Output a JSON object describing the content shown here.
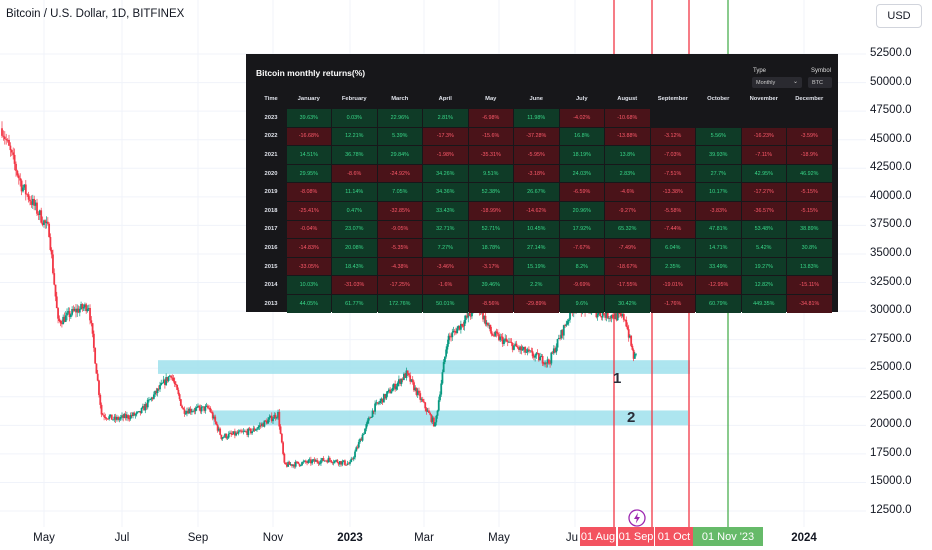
{
  "header": {
    "title": "Bitcoin / U.S. Dollar, 1D, BITFINEX",
    "currency": "USD"
  },
  "colors": {
    "up": "#089981",
    "down": "#f23645",
    "zone": "#9fe1ec",
    "red_line": "#f23645",
    "green_line": "#4caf50"
  },
  "y_axis": {
    "ticks": [
      "52500.0",
      "50000.0",
      "47500.0",
      "45000.0",
      "42500.0",
      "40000.0",
      "37500.0",
      "35000.0",
      "32500.0",
      "30000.0",
      "27500.0",
      "25000.0",
      "22500.0",
      "20000.0",
      "17500.0",
      "15000.0",
      "12500.0"
    ]
  },
  "x_axis": {
    "ticks": [
      "May",
      "Jul",
      "Sep",
      "Nov",
      "2023",
      "Mar",
      "May",
      "Ju",
      "2024"
    ]
  },
  "flags": [
    {
      "label": "01 Aug",
      "color": "#f23645"
    },
    {
      "label": "01 Sep",
      "color": "#f23645"
    },
    {
      "label": "01 Oct",
      "color": "#f23645"
    },
    {
      "label": "01 Nov '23",
      "color": "#4caf50"
    }
  ],
  "zones": [
    {
      "label": "1",
      "low": 24500,
      "high": 25700
    },
    {
      "label": "2",
      "low": 20000,
      "high": 21300
    }
  ],
  "vertical_lines": [
    "01 Aug",
    "01 Sep",
    "01 Oct",
    "01 Nov '23"
  ],
  "chart_data": {
    "type": "candlestick",
    "symbol": "BTC/USD",
    "interval": "1D",
    "x_range": [
      "2022-04",
      "2024-01"
    ],
    "ylim": [
      11000,
      56000
    ],
    "trend_points": [
      {
        "x": "2022-04-01",
        "y": 46000
      },
      {
        "x": "2022-04-15",
        "y": 41000
      },
      {
        "x": "2022-05-05",
        "y": 37000
      },
      {
        "x": "2022-05-12",
        "y": 29000
      },
      {
        "x": "2022-05-25",
        "y": 30000
      },
      {
        "x": "2022-06-05",
        "y": 30500
      },
      {
        "x": "2022-06-15",
        "y": 21000
      },
      {
        "x": "2022-06-25",
        "y": 20500
      },
      {
        "x": "2022-07-15",
        "y": 21000
      },
      {
        "x": "2022-08-10",
        "y": 24500
      },
      {
        "x": "2022-08-20",
        "y": 21300
      },
      {
        "x": "2022-09-10",
        "y": 21500
      },
      {
        "x": "2022-09-20",
        "y": 19000
      },
      {
        "x": "2022-10-15",
        "y": 19500
      },
      {
        "x": "2022-11-05",
        "y": 21000
      },
      {
        "x": "2022-11-10",
        "y": 16500
      },
      {
        "x": "2022-12-15",
        "y": 17000
      },
      {
        "x": "2023-01-01",
        "y": 16600
      },
      {
        "x": "2023-01-20",
        "y": 21500
      },
      {
        "x": "2023-02-15",
        "y": 24500
      },
      {
        "x": "2023-03-10",
        "y": 20000
      },
      {
        "x": "2023-03-20",
        "y": 27500
      },
      {
        "x": "2023-04-14",
        "y": 30500
      },
      {
        "x": "2023-04-25",
        "y": 28000
      },
      {
        "x": "2023-05-15",
        "y": 26800
      },
      {
        "x": "2023-06-10",
        "y": 25500
      },
      {
        "x": "2023-06-30",
        "y": 30500
      },
      {
        "x": "2023-07-20",
        "y": 29800
      },
      {
        "x": "2023-08-10",
        "y": 29400
      },
      {
        "x": "2023-08-17",
        "y": 26000
      },
      {
        "x": "2023-08-20",
        "y": 26100
      }
    ]
  },
  "returns_table": {
    "title": "Bitcoin monthly returns(%)",
    "type_label": "Type",
    "type_value": "Monthly",
    "symbol_label": "Symbol",
    "symbol_value": "BTC",
    "time_header": "Time",
    "months": [
      "January",
      "February",
      "March",
      "April",
      "May",
      "June",
      "July",
      "August",
      "September",
      "October",
      "November",
      "December"
    ],
    "rows": [
      {
        "year": "2023",
        "values": [
          "39.63%",
          "0.03%",
          "22.96%",
          "2.81%",
          "-6.98%",
          "11.98%",
          "-4.02%",
          "-10.68%",
          "",
          "",
          "",
          ""
        ]
      },
      {
        "year": "2022",
        "values": [
          "-16.68%",
          "12.21%",
          "5.39%",
          "-17.3%",
          "-15.6%",
          "-37.28%",
          "16.8%",
          "-13.88%",
          "-3.12%",
          "5.56%",
          "-16.23%",
          "-3.59%"
        ]
      },
      {
        "year": "2021",
        "values": [
          "14.51%",
          "36.78%",
          "29.84%",
          "-1.98%",
          "-35.31%",
          "-5.95%",
          "18.19%",
          "13.8%",
          "-7.03%",
          "39.93%",
          "-7.11%",
          "-18.9%"
        ]
      },
      {
        "year": "2020",
        "values": [
          "29.95%",
          "-8.6%",
          "-24.92%",
          "34.26%",
          "9.51%",
          "-3.18%",
          "24.03%",
          "2.83%",
          "-7.51%",
          "27.7%",
          "42.95%",
          "46.92%"
        ]
      },
      {
        "year": "2019",
        "values": [
          "-8.08%",
          "11.14%",
          "7.05%",
          "34.36%",
          "52.38%",
          "26.67%",
          "-6.59%",
          "-4.6%",
          "-13.38%",
          "10.17%",
          "-17.27%",
          "-5.15%"
        ]
      },
      {
        "year": "2018",
        "values": [
          "-25.41%",
          "0.47%",
          "-32.85%",
          "33.43%",
          "-18.99%",
          "-14.62%",
          "20.96%",
          "-9.27%",
          "-5.58%",
          "-3.83%",
          "-36.57%",
          "-5.15%"
        ]
      },
      {
        "year": "2017",
        "values": [
          "-0.04%",
          "23.07%",
          "-9.05%",
          "32.71%",
          "52.71%",
          "10.45%",
          "17.92%",
          "65.32%",
          "-7.44%",
          "47.81%",
          "53.48%",
          "38.89%"
        ]
      },
      {
        "year": "2016",
        "values": [
          "-14.83%",
          "20.08%",
          "-5.35%",
          "7.27%",
          "18.78%",
          "27.14%",
          "-7.67%",
          "-7.49%",
          "6.04%",
          "14.71%",
          "5.42%",
          "30.8%"
        ]
      },
      {
        "year": "2015",
        "values": [
          "-33.05%",
          "18.43%",
          "-4.38%",
          "-3.46%",
          "-3.17%",
          "15.19%",
          "8.2%",
          "-18.67%",
          "2.35%",
          "33.49%",
          "19.27%",
          "13.83%"
        ]
      },
      {
        "year": "2014",
        "values": [
          "10.03%",
          "-31.03%",
          "-17.25%",
          "-1.6%",
          "39.46%",
          "2.2%",
          "-9.69%",
          "-17.55%",
          "-19.01%",
          "-12.95%",
          "12.82%",
          "-15.11%"
        ]
      },
      {
        "year": "2013",
        "values": [
          "44.05%",
          "61.77%",
          "172.76%",
          "50.01%",
          "-8.56%",
          "-29.89%",
          "9.6%",
          "30.42%",
          "-1.76%",
          "60.79%",
          "449.35%",
          "-34.81%"
        ]
      }
    ]
  }
}
